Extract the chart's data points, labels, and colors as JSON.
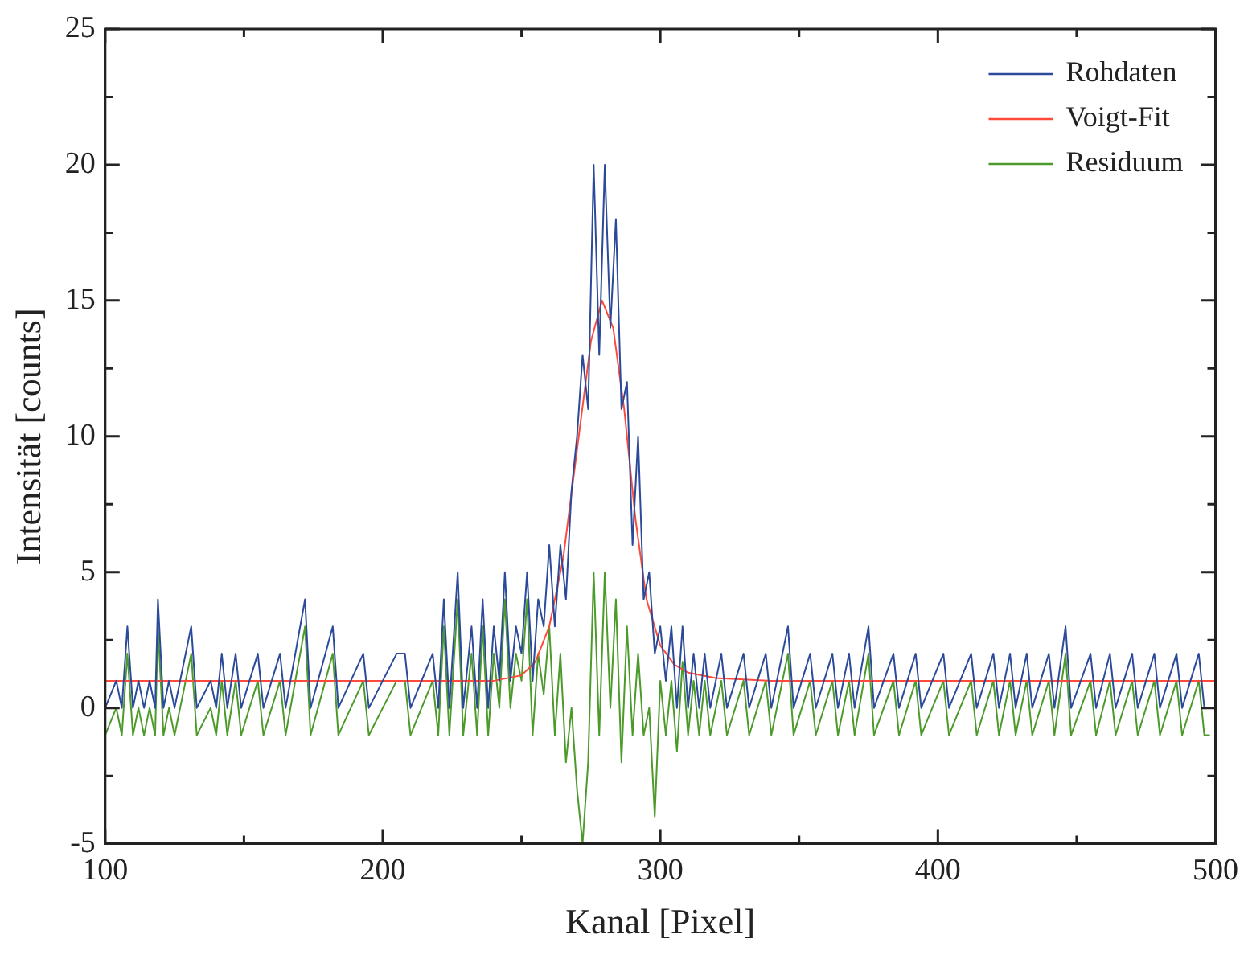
{
  "chart_data": {
    "type": "line",
    "xlabel": "Kanal [Pixel]",
    "ylabel": "Intensität [counts]",
    "xlim": [
      100,
      500
    ],
    "ylim": [
      -5,
      25
    ],
    "xticks": [
      100,
      {
        "value": 150,
        "label": null
      },
      200,
      {
        "value": 250,
        "label": null
      },
      300,
      {
        "value": 350,
        "label": null
      },
      400,
      {
        "value": 450,
        "label": null
      },
      500
    ],
    "yticks": [
      -5,
      {
        "value": -2.5,
        "label": null
      },
      0,
      {
        "value": 2.5,
        "label": null
      },
      5,
      {
        "value": 7.5,
        "label": null
      },
      10,
      {
        "value": 12.5,
        "label": null
      },
      15,
      {
        "value": 17.5,
        "label": null
      },
      20,
      {
        "value": 22.5,
        "label": null
      },
      25
    ],
    "grid": false,
    "legend": "top right",
    "marker": "none",
    "line_style": "solid",
    "series": [
      {
        "name": "Rohdaten",
        "color": "#2b4a9a",
        "x": [
          100,
          104,
          106,
          108,
          110,
          112,
          114,
          116,
          118,
          119,
          121,
          123,
          125,
          131,
          133,
          138,
          140,
          142,
          144,
          147,
          149,
          155,
          157,
          163,
          165,
          172,
          174,
          182,
          184,
          193,
          195,
          205,
          208,
          210,
          218,
          220,
          222,
          224,
          227,
          229,
          232,
          234,
          236,
          238,
          240,
          242,
          244,
          246,
          248,
          250,
          252,
          254,
          256,
          258,
          260,
          262,
          264,
          266,
          268,
          270,
          272,
          274,
          276,
          278,
          280,
          282,
          284,
          286,
          288,
          290,
          292,
          294,
          296,
          298,
          300,
          302,
          304,
          306,
          308,
          310,
          312,
          314,
          316,
          318,
          322,
          324,
          330,
          332,
          338,
          340,
          346,
          348,
          354,
          356,
          362,
          364,
          368,
          370,
          375,
          377,
          384,
          386,
          392,
          394,
          402,
          404,
          412,
          414,
          420,
          422,
          426,
          428,
          432,
          434,
          440,
          442,
          446,
          448,
          455,
          457,
          462,
          464,
          470,
          472,
          478,
          480,
          486,
          488,
          494,
          496,
          498
        ],
        "values": [
          0,
          1,
          0,
          3,
          0,
          1,
          0,
          1,
          0,
          4,
          0,
          1,
          0,
          3,
          0,
          1,
          0,
          2,
          0,
          2,
          0,
          2,
          0,
          2,
          0,
          4,
          0,
          3,
          0,
          2,
          0,
          2,
          2,
          0,
          2,
          0,
          4,
          0,
          5,
          0,
          3,
          0,
          4,
          0,
          3,
          1,
          5,
          1,
          3,
          2,
          5,
          1,
          4,
          3,
          6,
          3,
          6,
          4,
          8,
          10,
          13,
          11,
          20,
          13,
          20,
          14,
          18,
          11,
          12,
          6,
          10,
          4,
          5,
          2,
          3,
          1,
          3,
          0,
          3,
          0,
          2,
          0,
          2,
          0,
          2,
          0,
          2,
          0,
          2,
          0,
          3,
          0,
          2,
          0,
          2,
          0,
          2,
          0,
          3,
          0,
          2,
          0,
          2,
          0,
          2,
          0,
          2,
          0,
          2,
          0,
          2,
          0,
          2,
          0,
          2,
          0,
          3,
          0,
          2,
          0,
          2,
          0,
          2,
          0,
          2,
          0,
          2,
          0,
          2,
          0,
          0
        ]
      },
      {
        "name": "Voigt-Fit",
        "color": "#ff4a3a",
        "x": [
          100,
          240,
          250,
          255,
          260,
          265,
          270,
          275,
          279,
          283,
          287,
          291,
          295,
          300,
          305,
          310,
          320,
          340,
          500
        ],
        "values": [
          1,
          1,
          1.2,
          1.7,
          3,
          5.5,
          9.5,
          13.5,
          15,
          14,
          11,
          7,
          4,
          2.3,
          1.6,
          1.3,
          1.1,
          1,
          1
        ]
      },
      {
        "name": "Residuum",
        "color": "#4c9a2a",
        "x": [
          100,
          104,
          106,
          108,
          110,
          112,
          114,
          116,
          118,
          119,
          121,
          123,
          125,
          131,
          133,
          138,
          140,
          142,
          144,
          147,
          149,
          155,
          157,
          163,
          165,
          172,
          174,
          182,
          184,
          193,
          195,
          205,
          208,
          210,
          218,
          220,
          222,
          224,
          227,
          229,
          232,
          234,
          236,
          238,
          240,
          242,
          244,
          246,
          248,
          250,
          252,
          254,
          256,
          258,
          260,
          262,
          264,
          266,
          268,
          270,
          272,
          274,
          276,
          278,
          280,
          282,
          284,
          286,
          288,
          290,
          292,
          294,
          296,
          298,
          300,
          302,
          304,
          306,
          308,
          310,
          312,
          314,
          316,
          318,
          322,
          324,
          330,
          332,
          338,
          340,
          346,
          348,
          354,
          356,
          362,
          364,
          368,
          370,
          375,
          377,
          384,
          386,
          392,
          394,
          402,
          404,
          412,
          414,
          420,
          422,
          426,
          428,
          432,
          434,
          440,
          442,
          446,
          448,
          455,
          457,
          462,
          464,
          470,
          472,
          478,
          480,
          486,
          488,
          494,
          496,
          498
        ],
        "values": [
          -1,
          0,
          -1,
          2,
          -1,
          0,
          -1,
          0,
          -1,
          3,
          -1,
          0,
          -1,
          2,
          -1,
          0,
          -1,
          1,
          -1,
          1,
          -1,
          1,
          -1,
          1,
          -1,
          3,
          -1,
          2,
          -1,
          1,
          -1,
          1,
          1,
          -1,
          1,
          -1,
          3,
          -1,
          4,
          -1,
          2,
          -1,
          3,
          -1,
          2,
          0,
          4,
          0,
          2,
          1,
          4,
          -1,
          2,
          0.5,
          3,
          -1,
          2,
          -2,
          0,
          -3,
          -5,
          -2,
          5,
          -1,
          5,
          0,
          4,
          -2,
          3,
          -1,
          2,
          -1,
          0,
          -4,
          1,
          -1,
          1,
          -1.6,
          1.7,
          -1,
          1,
          -1,
          1,
          -1,
          1,
          -1,
          1,
          -1,
          1,
          -1,
          2,
          -1,
          1,
          -1,
          1,
          -1,
          1,
          -1,
          2,
          -1,
          1,
          -1,
          1,
          -1,
          1,
          -1,
          1,
          -1,
          1,
          -1,
          1,
          -1,
          1,
          -1,
          1,
          -1,
          2,
          -1,
          1,
          -1,
          1,
          -1,
          1,
          -1,
          1,
          -1,
          1,
          -1,
          1,
          -1,
          -1
        ]
      }
    ]
  }
}
